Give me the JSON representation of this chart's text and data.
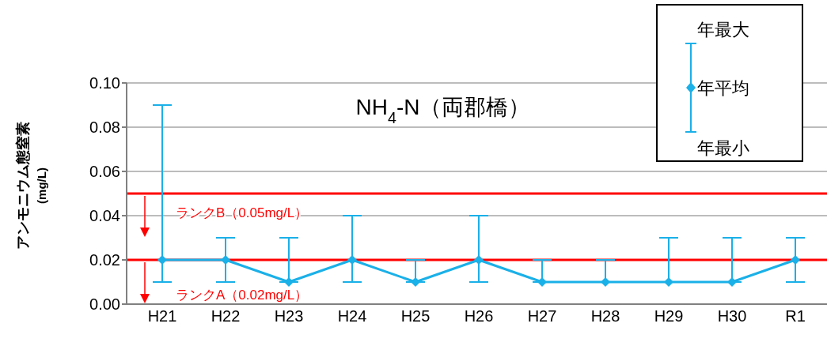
{
  "chart_data": {
    "type": "line",
    "title": "NH$_{4}$-N（両郡橋）",
    "ylabel": "アンモニウム態窒素\n(mg/L)",
    "categories": [
      "H21",
      "H22",
      "H23",
      "H24",
      "H25",
      "H26",
      "H27",
      "H28",
      "H29",
      "H30",
      "R1"
    ],
    "series": [
      {
        "name": "年平均",
        "color": "#1ab0e8",
        "values": [
          0.02,
          0.02,
          0.01,
          0.02,
          0.01,
          0.02,
          0.01,
          0.01,
          0.01,
          0.01,
          0.02
        ],
        "errors": [
          [
            0.01,
            0.09
          ],
          [
            0.01,
            0.03
          ],
          [
            0.01,
            0.03
          ],
          [
            0.01,
            0.04
          ],
          [
            0.01,
            0.02
          ],
          [
            0.01,
            0.04
          ],
          [
            0.01,
            0.02
          ],
          [
            0.01,
            0.02
          ],
          [
            0.01,
            0.03
          ],
          [
            0.01,
            0.03
          ],
          [
            0.01,
            0.03
          ]
        ]
      }
    ],
    "annotations": [
      "年最大",
      "年最小"
    ],
    "ylim": [
      0,
      0.1
    ],
    "yticks": [
      {
        "value": 0,
        "label": "0.00"
      },
      {
        "value": 0.02,
        "label": "0.02"
      },
      {
        "value": 0.04,
        "label": "0.04"
      },
      {
        "value": 0.06,
        "label": "0.06"
      },
      {
        "value": 0.08,
        "label": "0.08"
      },
      {
        "value": 0.1,
        "label": "0.10"
      }
    ],
    "ref_lines": [
      {
        "axis": "y",
        "value": 0.05,
        "label": "ランクB（0.05mg/L）",
        "color": "#ff0000"
      },
      {
        "axis": "y",
        "value": 0.02,
        "label": "ランクA（0.02mg/L）",
        "color": "#ff0000"
      }
    ],
    "grid": "y",
    "legend": "top right",
    "marker": "diamond",
    "line_style": "solid"
  }
}
